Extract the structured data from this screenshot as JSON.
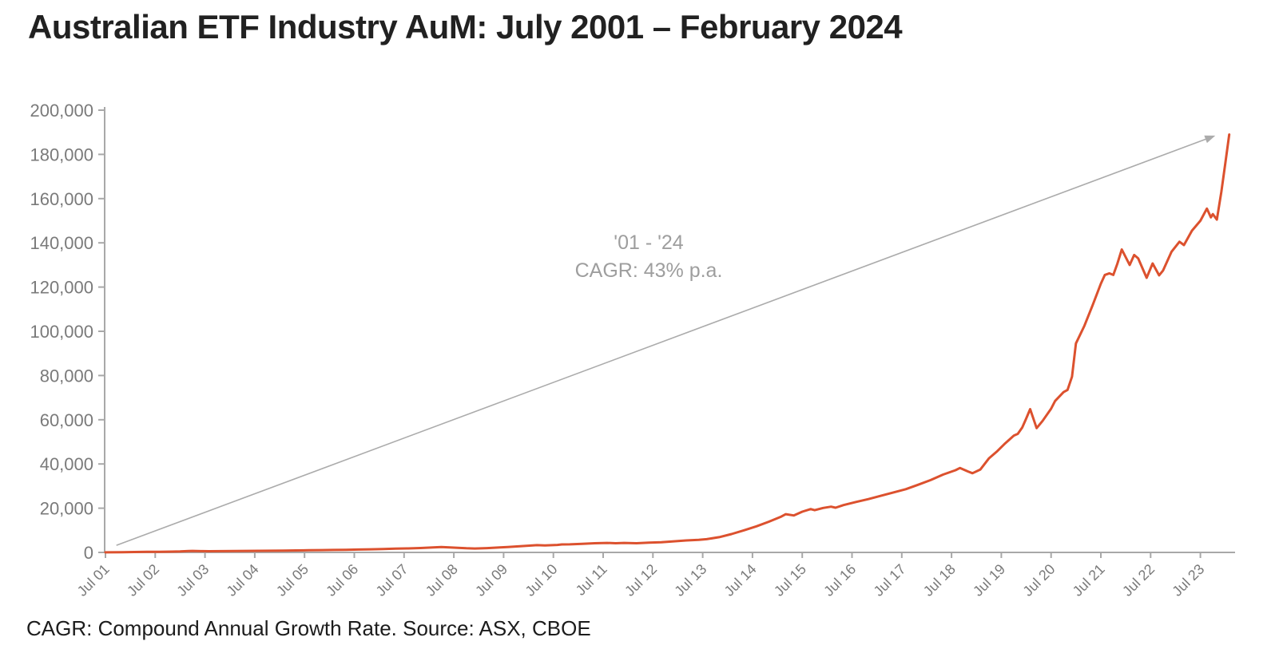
{
  "header": {
    "title": "Australian ETF Industry AuM: July 2001 – February 2024"
  },
  "footer": {
    "note": "CAGR: Compound Annual Growth Rate. Source: ASX, CBOE"
  },
  "colors": {
    "line": "#dc512e",
    "axis": "#a8a8a8",
    "arrow": "#ababab",
    "tick_label": "#7a7a7a",
    "annotation": "#9e9e9e",
    "title_text": "#212121",
    "background": "#ffffff"
  },
  "chart_data": {
    "type": "line",
    "title": "Australian ETF Industry AuM: July 2001 – February 2024",
    "xlabel": "",
    "ylabel": "",
    "grid": false,
    "legend_position": "none",
    "ylim": [
      0,
      200000
    ],
    "y_tick_step": 20000,
    "y_tick_labels": [
      "0",
      "20,000",
      "40,000",
      "60,000",
      "80,000",
      "100,000",
      "120,000",
      "140,000",
      "160,000",
      "180,000",
      "200,000"
    ],
    "x_tick_labels": [
      "Jul 01",
      "Jul 02",
      "Jul 03",
      "Jul 04",
      "Jul 05",
      "Jul 06",
      "Jul 07",
      "Jul 08",
      "Jul 09",
      "Jul 10",
      "Jul 11",
      "Jul 12",
      "Jul 13",
      "Jul 14",
      "Jul 15",
      "Jul 16",
      "Jul 17",
      "Jul 18",
      "Jul 19",
      "Jul 20",
      "Jul 21",
      "Jul 22",
      "Jul 23"
    ],
    "x_range_years": [
      2001.5,
      2024.25
    ],
    "annotation": {
      "line1": "'01 - '24",
      "line2": "CAGR: 43% p.a."
    },
    "trend_arrow": {
      "from": {
        "t": 2001.72,
        "value": 3200
      },
      "to": {
        "t": 2023.8,
        "value": 188500
      }
    },
    "series": [
      {
        "name": "Australian ETF Industry AuM",
        "color": "#dc512e",
        "points": [
          [
            2001.5,
            50
          ],
          [
            2001.83,
            100
          ],
          [
            2002.08,
            170
          ],
          [
            2002.33,
            240
          ],
          [
            2002.58,
            300
          ],
          [
            2002.83,
            370
          ],
          [
            2003.0,
            450
          ],
          [
            2003.17,
            620
          ],
          [
            2003.25,
            700
          ],
          [
            2003.42,
            560
          ],
          [
            2003.58,
            540
          ],
          [
            2003.83,
            580
          ],
          [
            2004.08,
            630
          ],
          [
            2004.33,
            670
          ],
          [
            2004.58,
            710
          ],
          [
            2004.83,
            770
          ],
          [
            2005.08,
            840
          ],
          [
            2005.33,
            900
          ],
          [
            2005.58,
            960
          ],
          [
            2005.83,
            1030
          ],
          [
            2006.08,
            1110
          ],
          [
            2006.33,
            1200
          ],
          [
            2006.58,
            1290
          ],
          [
            2006.83,
            1400
          ],
          [
            2007.08,
            1530
          ],
          [
            2007.33,
            1680
          ],
          [
            2007.58,
            1820
          ],
          [
            2007.83,
            2000
          ],
          [
            2008.08,
            2250
          ],
          [
            2008.25,
            2440
          ],
          [
            2008.42,
            2250
          ],
          [
            2008.58,
            2100
          ],
          [
            2008.75,
            1880
          ],
          [
            2008.92,
            1760
          ],
          [
            2009.17,
            1950
          ],
          [
            2009.42,
            2250
          ],
          [
            2009.58,
            2450
          ],
          [
            2009.83,
            2800
          ],
          [
            2010.08,
            3150
          ],
          [
            2010.17,
            3300
          ],
          [
            2010.33,
            3150
          ],
          [
            2010.58,
            3400
          ],
          [
            2010.67,
            3600
          ],
          [
            2010.83,
            3650
          ],
          [
            2011.08,
            3900
          ],
          [
            2011.33,
            4150
          ],
          [
            2011.58,
            4300
          ],
          [
            2011.75,
            4150
          ],
          [
            2011.92,
            4300
          ],
          [
            2012.17,
            4150
          ],
          [
            2012.42,
            4400
          ],
          [
            2012.67,
            4600
          ],
          [
            2012.92,
            5000
          ],
          [
            2013.17,
            5400
          ],
          [
            2013.42,
            5700
          ],
          [
            2013.58,
            6000
          ],
          [
            2013.83,
            6900
          ],
          [
            2014.08,
            8300
          ],
          [
            2014.33,
            10000
          ],
          [
            2014.58,
            11800
          ],
          [
            2014.83,
            13900
          ],
          [
            2015.08,
            16200
          ],
          [
            2015.17,
            17300
          ],
          [
            2015.33,
            16700
          ],
          [
            2015.5,
            18400
          ],
          [
            2015.67,
            19600
          ],
          [
            2015.75,
            19100
          ],
          [
            2015.92,
            20100
          ],
          [
            2016.08,
            20700
          ],
          [
            2016.17,
            20200
          ],
          [
            2016.33,
            21400
          ],
          [
            2016.58,
            22800
          ],
          [
            2016.83,
            24100
          ],
          [
            2017.08,
            25600
          ],
          [
            2017.33,
            27100
          ],
          [
            2017.58,
            28600
          ],
          [
            2017.83,
            30600
          ],
          [
            2018.08,
            32700
          ],
          [
            2018.33,
            35200
          ],
          [
            2018.58,
            37200
          ],
          [
            2018.67,
            38200
          ],
          [
            2018.83,
            36600
          ],
          [
            2018.92,
            35800
          ],
          [
            2019.08,
            37500
          ],
          [
            2019.25,
            42500
          ],
          [
            2019.42,
            45800
          ],
          [
            2019.58,
            49400
          ],
          [
            2019.75,
            52800
          ],
          [
            2019.83,
            53600
          ],
          [
            2019.92,
            56500
          ],
          [
            2020.0,
            60500
          ],
          [
            2020.08,
            64800
          ],
          [
            2020.21,
            56200
          ],
          [
            2020.33,
            59500
          ],
          [
            2020.5,
            65000
          ],
          [
            2020.58,
            68500
          ],
          [
            2020.75,
            72500
          ],
          [
            2020.83,
            73500
          ],
          [
            2020.92,
            79500
          ],
          [
            2021.0,
            94500
          ],
          [
            2021.17,
            102500
          ],
          [
            2021.33,
            111500
          ],
          [
            2021.5,
            121500
          ],
          [
            2021.58,
            125500
          ],
          [
            2021.67,
            126200
          ],
          [
            2021.75,
            125500
          ],
          [
            2021.83,
            130500
          ],
          [
            2021.92,
            137000
          ],
          [
            2022.08,
            130000
          ],
          [
            2022.17,
            134500
          ],
          [
            2022.25,
            133000
          ],
          [
            2022.42,
            124200
          ],
          [
            2022.54,
            130700
          ],
          [
            2022.67,
            125300
          ],
          [
            2022.75,
            127500
          ],
          [
            2022.92,
            136000
          ],
          [
            2023.08,
            140500
          ],
          [
            2023.17,
            139000
          ],
          [
            2023.33,
            145500
          ],
          [
            2023.5,
            150000
          ],
          [
            2023.63,
            155500
          ],
          [
            2023.71,
            151500
          ],
          [
            2023.75,
            153000
          ],
          [
            2023.83,
            150500
          ],
          [
            2023.92,
            163000
          ],
          [
            2024.0,
            176000
          ],
          [
            2024.08,
            189000
          ]
        ]
      }
    ]
  }
}
